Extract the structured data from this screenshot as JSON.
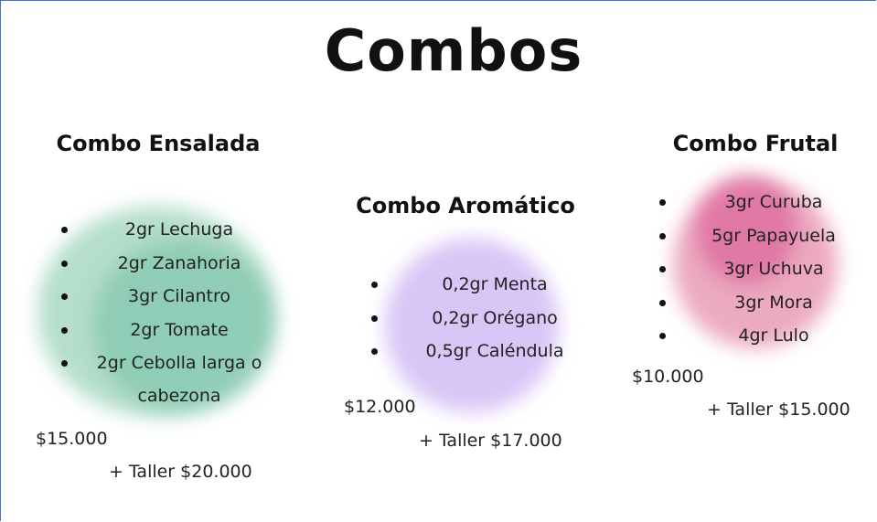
{
  "title": "Combos",
  "combos": [
    {
      "name": "Combo Ensalada",
      "items": [
        "2gr Lechuga",
        "2gr Zanahoria",
        "3gr Cilantro",
        "2gr Tomate",
        "2gr Cebolla larga o cabezona"
      ],
      "price": "$15.000",
      "taller": "+ Taller $20.000"
    },
    {
      "name": "Combo Aromático",
      "items": [
        "0,2gr Menta",
        "0,2gr Orégano",
        "0,5gr Caléndula"
      ],
      "price": "$12.000",
      "taller": "+ Taller $17.000"
    },
    {
      "name": "Combo Frutal",
      "items": [
        "3gr Curuba",
        "5gr Papayuela",
        "3gr Uchuva",
        "3gr Mora",
        "4gr Lulo"
      ],
      "price": "$10.000",
      "taller": "+ Taller $15.000"
    }
  ]
}
